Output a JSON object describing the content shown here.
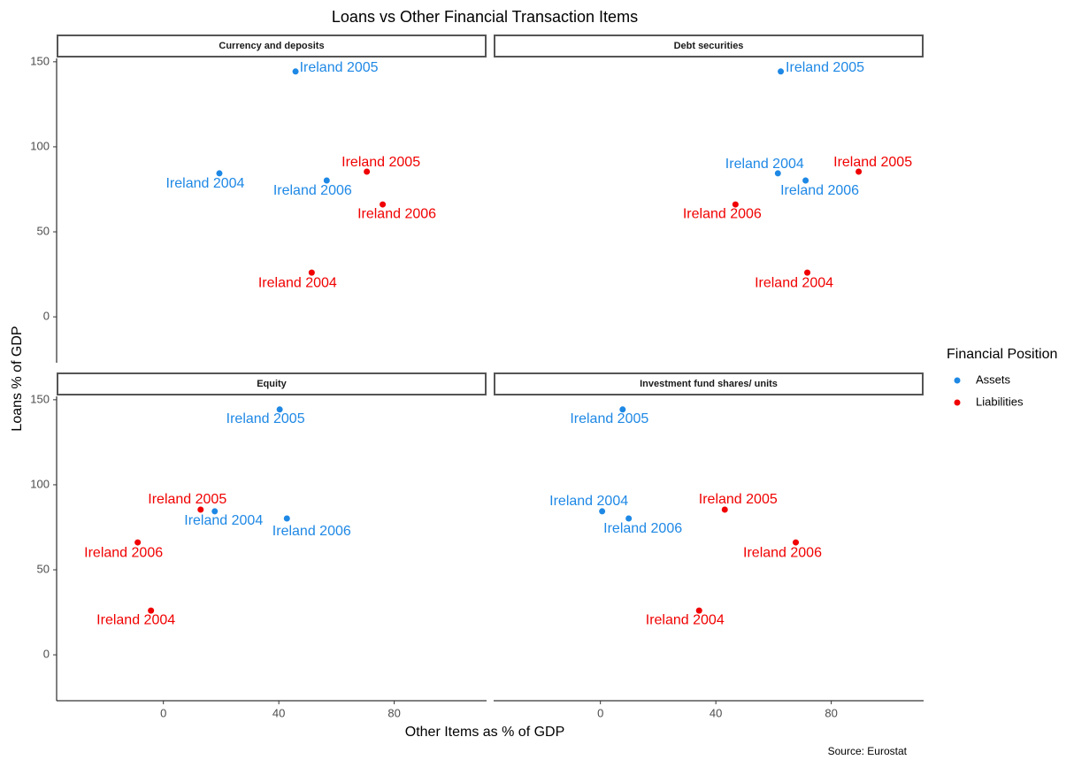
{
  "title": "Loans vs Other Financial Transaction Items",
  "x_label": "Other Items as % of GDP",
  "y_label": "Loans % of GDP",
  "legend_title": "Financial Position",
  "source": "Source: Eurostat",
  "chart_data": [
    {
      "type": "scatter",
      "title": "Currency and deposits",
      "xlim": [
        -37,
        112
      ],
      "ylim": [
        -27,
        152
      ],
      "yticks": [
        0,
        50,
        100,
        150
      ],
      "series": [
        {
          "name": "Assets",
          "color": "#1e88e5",
          "x": [
            19.4,
            45.8,
            56.6
          ],
          "values": [
            84.4,
            144.3,
            80.2
          ],
          "labels": [
            "Ireland 2004",
            "Ireland 2005",
            "Ireland 2006"
          ]
        },
        {
          "name": "Liabilities",
          "color": "#f00000",
          "x": [
            51.4,
            70.5,
            76
          ],
          "values": [
            26,
            85.4,
            66.1
          ],
          "labels": [
            "Ireland 2004",
            "Ireland 2005",
            "Ireland 2006"
          ]
        }
      ]
    },
    {
      "type": "scatter",
      "title": "Debt securities",
      "xlim": [
        -37,
        112
      ],
      "ylim": [
        -27,
        152
      ],
      "series": [
        {
          "name": "Assets",
          "color": "#1e88e5",
          "x": [
            61.5,
            62.5,
            71.1
          ],
          "values": [
            84.4,
            144.3,
            80.2
          ],
          "labels": [
            "Ireland 2004",
            "Ireland 2005",
            "Ireland 2006"
          ]
        },
        {
          "name": "Liabilities",
          "color": "#f00000",
          "x": [
            71.7,
            89.5,
            46.8
          ],
          "values": [
            26,
            85.4,
            66.1
          ],
          "labels": [
            "Ireland 2004",
            "Ireland 2005",
            "Ireland 2006"
          ]
        }
      ]
    },
    {
      "type": "scatter",
      "title": "Equity",
      "xlim": [
        -37,
        112
      ],
      "ylim": [
        -27,
        152
      ],
      "xticks": [
        0,
        40,
        80
      ],
      "yticks": [
        0,
        50,
        100,
        150
      ],
      "series": [
        {
          "name": "Assets",
          "color": "#1e88e5",
          "x": [
            17.8,
            40.3,
            42.8
          ],
          "values": [
            84.4,
            144.3,
            80.2
          ],
          "labels": [
            "Ireland 2004",
            "Ireland 2005",
            "Ireland 2006"
          ]
        },
        {
          "name": "Liabilities",
          "color": "#f00000",
          "x": [
            -4.3,
            12.9,
            -8.9
          ],
          "values": [
            26,
            85.4,
            66.1
          ],
          "labels": [
            "Ireland 2004",
            "Ireland 2005",
            "Ireland 2006"
          ]
        }
      ]
    },
    {
      "type": "scatter",
      "title": "Investment fund shares/ units",
      "xlim": [
        -37,
        112
      ],
      "ylim": [
        -27,
        152
      ],
      "xticks": [
        0,
        40,
        80
      ],
      "series": [
        {
          "name": "Assets",
          "color": "#1e88e5",
          "x": [
            0.6,
            7.7,
            9.8
          ],
          "values": [
            84.4,
            144.3,
            80.2
          ],
          "labels": [
            "Ireland 2004",
            "Ireland 2005",
            "Ireland 2006"
          ]
        },
        {
          "name": "Liabilities",
          "color": "#f00000",
          "x": [
            34.2,
            43.1,
            67.7
          ],
          "values": [
            26,
            85.4,
            66.1
          ],
          "labels": [
            "Ireland 2004",
            "Ireland 2005",
            "Ireland 2006"
          ]
        }
      ]
    }
  ]
}
